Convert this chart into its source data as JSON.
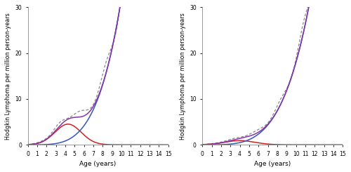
{
  "xlim": [
    0,
    15
  ],
  "ylim": [
    0,
    30
  ],
  "xticks": [
    0,
    1,
    2,
    3,
    4,
    5,
    6,
    7,
    8,
    9,
    10,
    11,
    12,
    13,
    14,
    15
  ],
  "yticks": [
    0,
    10,
    20,
    30
  ],
  "xlabel": "Age (years)",
  "ylabel": "Hodgkin Lymphoma per million person-years",
  "observed_color": "#888888",
  "red_color": "#cc2222",
  "blue_color": "#3355bb",
  "purple_color": "#8833aa",
  "boys_childhood_peak_age": 4.3,
  "boys_childhood_peak_val": 4.5,
  "boys_childhood_sigma": 1.4,
  "boys_adult_scale": 0.0032,
  "boys_adult_power": 4.0,
  "girls_childhood_peak_age": 4.0,
  "girls_childhood_peak_val": 0.9,
  "girls_childhood_sigma": 1.6,
  "girls_adult_scale": 0.0018,
  "girls_adult_power": 4.0,
  "boys_obs_wiggle_amp": 0.08,
  "boys_obs_wiggle_freq": 2.5,
  "girls_obs_wiggle_amp": 0.06,
  "girls_obs_wiggle_freq": 2.5
}
